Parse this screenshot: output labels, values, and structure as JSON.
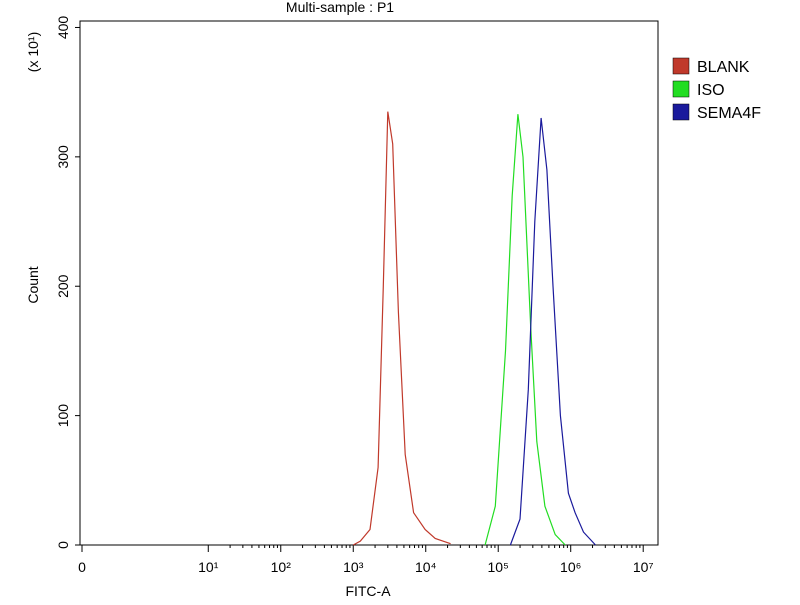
{
  "chart_data": {
    "type": "line",
    "title": "Multi-sample : P1",
    "x_label": "FITC-A",
    "y_label": "Count",
    "y_multiplier": "(x 10¹)",
    "xscale": "log",
    "xlim": [
      0.17,
      16000000
    ],
    "xticks": [
      0,
      {
        "value": 10,
        "label": "10¹"
      },
      {
        "value": 100,
        "label": "10²"
      },
      {
        "value": 1000,
        "label": "10³"
      },
      {
        "value": 10000,
        "label": "10⁴"
      },
      {
        "value": 100000,
        "label": "10⁵"
      },
      {
        "value": 1000000,
        "label": "10⁶"
      },
      {
        "value": 10000000,
        "label": "10⁷"
      }
    ],
    "ylim": [
      0,
      405
    ],
    "yticks": [
      0,
      100,
      200,
      300,
      400
    ],
    "legend": "right",
    "series": [
      {
        "name": "BLANK",
        "color": "#c0392b",
        "x": [
          1000,
          1250,
          1700,
          2200,
          2600,
          3000,
          3500,
          4200,
          5200,
          6800,
          9800,
          13500,
          22000
        ],
        "values": [
          0,
          3,
          12,
          60,
          200,
          335,
          310,
          180,
          70,
          25,
          12,
          5,
          1
        ]
      },
      {
        "name": "ISO",
        "color": "#22dd22",
        "x": [
          66000,
          91000,
          126000,
          156000,
          187000,
          220000,
          280000,
          340000,
          440000,
          610000,
          840000
        ],
        "values": [
          0,
          30,
          150,
          270,
          333,
          300,
          170,
          80,
          30,
          8,
          0
        ]
      },
      {
        "name": "SEMA4F",
        "color": "#1a1a9c",
        "x": [
          147000,
          200000,
          260000,
          320000,
          390000,
          470000,
          570000,
          720000,
          930000,
          1150000,
          1500000,
          2200000
        ],
        "values": [
          0,
          20,
          120,
          250,
          330,
          290,
          200,
          100,
          40,
          25,
          10,
          0
        ]
      }
    ]
  }
}
